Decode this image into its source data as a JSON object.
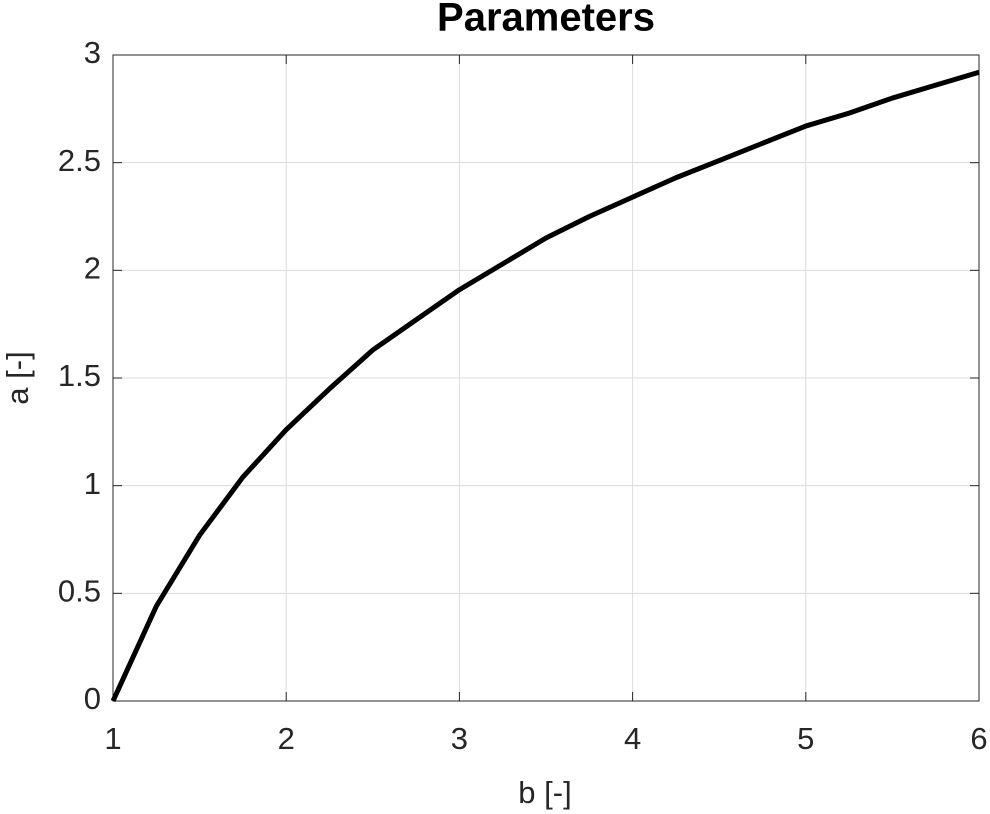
{
  "chart_data": {
    "type": "line",
    "title": "Parameters",
    "xlabel": "b [-]",
    "ylabel": "a [-]",
    "x": [
      1,
      1.25,
      1.5,
      1.75,
      2,
      2.25,
      2.5,
      2.75,
      3,
      3.25,
      3.5,
      3.75,
      4,
      4.25,
      4.5,
      4.75,
      5,
      5.25,
      5.5,
      5.75,
      6
    ],
    "series": [
      {
        "color": "#000000",
        "values": [
          0,
          0.44,
          0.77,
          1.04,
          1.26,
          1.45,
          1.63,
          1.77,
          1.91,
          2.03,
          2.15,
          2.25,
          2.34,
          2.43,
          2.51,
          2.59,
          2.67,
          2.73,
          2.8,
          2.86,
          2.92
        ]
      }
    ],
    "xlim": [
      1,
      6
    ],
    "xticks": [
      1,
      2,
      3,
      4,
      5,
      6
    ],
    "ylim": [
      0,
      3
    ],
    "yticks": [
      0,
      0.5,
      1,
      1.5,
      2,
      2.5,
      3
    ],
    "grid": true
  }
}
